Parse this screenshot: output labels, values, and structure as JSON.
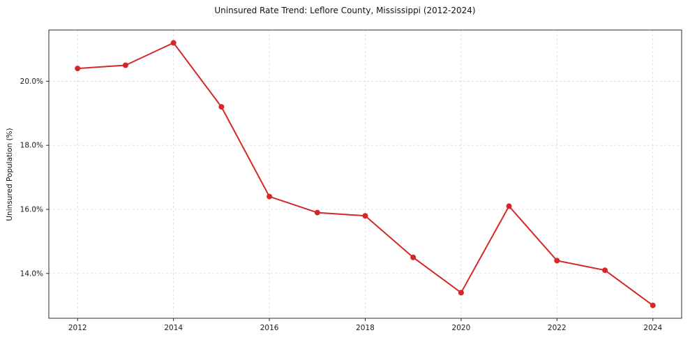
{
  "chart_data": {
    "type": "line",
    "title": "Uninsured Rate Trend: Leflore County, Mississippi (2012-2024)",
    "xlabel": "",
    "ylabel": "Uninsured Population (%)",
    "x": [
      2012,
      2013,
      2014,
      2015,
      2016,
      2017,
      2018,
      2019,
      2020,
      2021,
      2022,
      2023,
      2024
    ],
    "values": [
      20.4,
      20.5,
      21.2,
      19.2,
      16.4,
      15.9,
      15.8,
      14.5,
      13.4,
      16.1,
      14.4,
      14.1,
      13.0
    ],
    "xlim": [
      2011.4,
      2024.6
    ],
    "ylim": [
      12.6,
      21.6
    ],
    "xticks": [
      2012,
      2014,
      2016,
      2018,
      2020,
      2022,
      2024
    ],
    "xtick_labels": [
      "2012",
      "2014",
      "2016",
      "2018",
      "2020",
      "2022",
      "2024"
    ],
    "yticks": [
      14,
      16,
      18,
      20
    ],
    "ytick_labels": [
      "14.0%",
      "16.0%",
      "18.0%",
      "20.0%"
    ],
    "grid": true,
    "legend_position": "none",
    "line_color": "#d62728",
    "marker": "circle"
  }
}
